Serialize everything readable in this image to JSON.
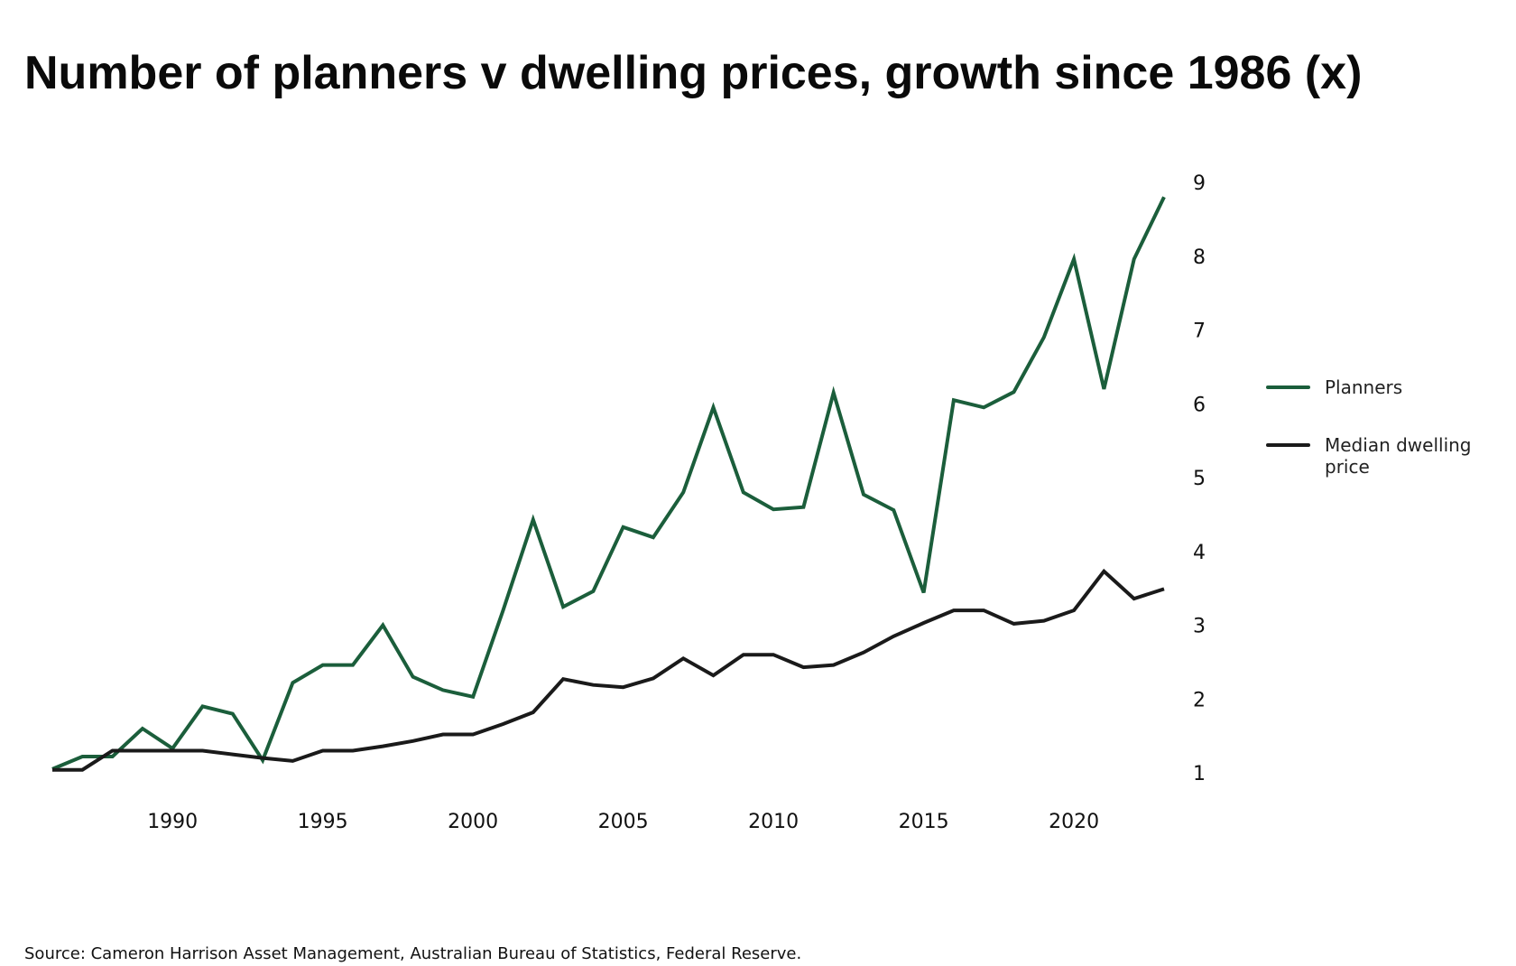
{
  "chart_data": {
    "type": "line",
    "title": "Number of planners v dwelling prices, growth since 1986 (x)",
    "source": "Source: Cameron Harrison Asset Management, Australian Bureau of Statistics, Federal Reserve.",
    "xlabel": "",
    "ylabel": "",
    "x": [
      1986,
      1987,
      1988,
      1989,
      1990,
      1991,
      1992,
      1993,
      1994,
      1995,
      1996,
      1997,
      1998,
      1999,
      2000,
      2001,
      2002,
      2003,
      2004,
      2005,
      2006,
      2007,
      2008,
      2009,
      2010,
      2011,
      2012,
      2013,
      2014,
      2015,
      2016,
      2017,
      2018,
      2019,
      2020,
      2021,
      2022,
      2023
    ],
    "xlim": [
      1986,
      2023
    ],
    "ylim": [
      1,
      9
    ],
    "x_ticks": [
      "1990",
      "1995",
      "2000",
      "2005",
      "2010",
      "2015",
      "2020"
    ],
    "y_ticks": [
      "1",
      "2",
      "3",
      "4",
      "5",
      "6",
      "7",
      "8",
      "9"
    ],
    "y_axis_position": "right",
    "grid": false,
    "legend_position": "right",
    "series": [
      {
        "name": "Planners",
        "color": "#1b5e3b",
        "values": [
          1.05,
          1.22,
          1.22,
          1.6,
          1.33,
          1.9,
          1.8,
          1.17,
          2.22,
          2.46,
          2.46,
          3.0,
          2.3,
          2.12,
          2.03,
          3.2,
          4.43,
          3.25,
          3.46,
          4.33,
          4.19,
          4.8,
          5.95,
          4.8,
          4.57,
          4.6,
          6.15,
          4.77,
          4.56,
          3.44,
          6.05,
          5.95,
          6.16,
          6.9,
          7.96,
          6.2,
          7.96,
          8.8
        ]
      },
      {
        "name": "Median dwelling price",
        "color": "#1a1a1a",
        "values": [
          1.04,
          1.04,
          1.3,
          1.3,
          1.3,
          1.3,
          1.25,
          1.2,
          1.16,
          1.3,
          1.3,
          1.36,
          1.43,
          1.52,
          1.52,
          1.66,
          1.82,
          2.27,
          2.19,
          2.16,
          2.28,
          2.55,
          2.32,
          2.6,
          2.6,
          2.43,
          2.46,
          2.63,
          2.85,
          3.03,
          3.2,
          3.2,
          3.02,
          3.06,
          3.2,
          3.73,
          3.36,
          3.49
        ]
      }
    ]
  }
}
